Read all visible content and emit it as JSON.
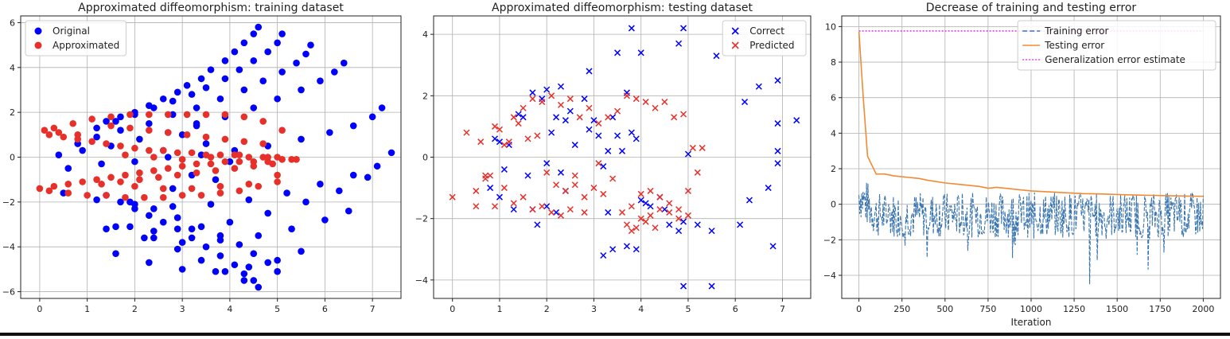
{
  "chart_data": [
    {
      "type": "scatter",
      "title": "Approximated diffeomorphism: training dataset",
      "xlabel": "",
      "ylabel": "",
      "xlim": [
        -0.4,
        7.6
      ],
      "ylim": [
        -6.3,
        6.3
      ],
      "xticks": [
        0,
        1,
        2,
        3,
        4,
        5,
        6,
        7
      ],
      "yticks": [
        -6,
        -4,
        -2,
        0,
        2,
        4,
        6
      ],
      "grid": true,
      "legend": "top-left",
      "series": [
        {
          "name": "Original",
          "color": "#0000ff",
          "marker": "dot",
          "x": [
            4.6,
            4.5,
            4.3,
            4.1,
            3.9,
            3.6,
            3.4,
            3.1,
            2.9,
            2.6,
            2.3,
            2.0,
            1.7,
            1.4,
            5.1,
            5.0,
            4.8,
            4.5,
            4.2,
            3.9,
            3.5,
            3.2,
            2.8,
            2.4,
            2.0,
            1.6,
            1.2,
            5.7,
            5.6,
            5.4,
            5.1,
            4.7,
            4.3,
            3.8,
            3.3,
            2.8,
            2.3,
            1.7,
            1.2,
            0.8,
            6.4,
            6.2,
            5.9,
            5.5,
            5.0,
            4.5,
            3.9,
            3.3,
            2.7,
            2.1,
            1.5,
            0.9,
            0.4,
            7.2,
            7.0,
            6.6,
            6.1,
            5.5,
            4.8,
            4.1,
            3.4,
            2.7,
            2.0,
            1.3,
            0.6,
            7.4,
            7.1,
            6.6,
            5.9,
            5.2,
            4.4,
            3.6,
            2.8,
            2.0,
            1.2,
            0.5,
            6.5,
            6.0,
            5.3,
            4.6,
            3.8,
            3.0,
            2.2,
            1.4,
            6.9,
            6.3,
            5.6,
            4.8,
            4.0,
            3.2,
            2.4,
            1.6,
            5.5,
            5.0,
            4.4,
            3.7,
            3.0,
            2.3,
            1.6,
            4.6,
            4.3,
            3.9,
            3.4,
            2.9,
            2.4,
            1.9,
            4.5,
            4.3,
            4.1,
            3.8,
            3.5,
            3.2,
            2.9,
            2.6,
            2.3,
            2.0,
            1.7,
            5.0,
            4.8,
            4.5,
            4.2,
            3.8,
            3.4,
            2.9,
            2.4,
            1.9,
            1.4,
            3.0,
            3.5,
            4.0,
            3.2,
            3.7,
            2.6,
            2.8,
            3.3
          ],
          "y": [
            5.8,
            5.5,
            5.1,
            4.7,
            4.3,
            3.9,
            3.5,
            3.2,
            2.9,
            2.6,
            2.3,
            2.0,
            1.8,
            1.6,
            5.5,
            5.1,
            4.7,
            4.3,
            3.9,
            3.5,
            3.1,
            2.8,
            2.5,
            2.2,
            1.9,
            1.6,
            1.3,
            5.0,
            4.6,
            4.2,
            3.8,
            3.4,
            3.0,
            2.6,
            2.2,
            1.9,
            1.5,
            1.2,
            0.9,
            0.6,
            4.2,
            3.8,
            3.4,
            3.0,
            2.6,
            2.2,
            1.8,
            1.4,
            1.1,
            0.8,
            0.5,
            0.3,
            0.1,
            2.2,
            1.8,
            1.4,
            1.1,
            0.8,
            0.5,
            0.3,
            0.1,
            0.0,
            -0.2,
            -0.3,
            -0.5,
            0.2,
            -0.4,
            -0.8,
            -1.2,
            -1.6,
            -1.9,
            -2.1,
            -2.2,
            -2.1,
            -1.9,
            -1.6,
            -2.4,
            -2.8,
            -3.2,
            -3.5,
            -3.7,
            -3.8,
            -3.6,
            -3.2,
            -0.9,
            -1.5,
            -2.0,
            -2.5,
            -2.9,
            -3.2,
            -3.3,
            -3.1,
            -4.2,
            -4.6,
            -4.9,
            -5.1,
            -5.0,
            -4.7,
            -4.3,
            -5.8,
            -5.5,
            -5.1,
            -4.6,
            -4.1,
            -3.6,
            -3.1,
            -5.5,
            -5.2,
            -4.8,
            -4.4,
            -4.0,
            -3.6,
            -3.2,
            -2.9,
            -2.6,
            -2.3,
            -2.0,
            -5.1,
            -4.7,
            -4.3,
            -3.9,
            -3.5,
            -3.1,
            -2.7,
            -2.3,
            -2.0,
            -1.7,
            1.0,
            0.6,
            -0.2,
            -0.8,
            -1.0,
            0.3,
            -1.4,
            1.5
          ]
        },
        {
          "name": "Approximated",
          "color": "#e8302a",
          "marker": "dot",
          "x": [
            0.0,
            0.3,
            0.6,
            0.9,
            1.2,
            1.5,
            1.8,
            2.1,
            2.4,
            2.7,
            3.0,
            3.3,
            3.6,
            3.9,
            4.2,
            4.5,
            4.8,
            5.1,
            5.3,
            5.4,
            0.2,
            0.5,
            0.8,
            1.1,
            1.4,
            1.7,
            2.0,
            2.3,
            2.6,
            2.9,
            3.2,
            3.5,
            3.8,
            4.1,
            4.4,
            4.7,
            5.0,
            0.3,
            0.7,
            1.1,
            1.5,
            1.9,
            2.3,
            2.7,
            3.1,
            3.5,
            3.9,
            4.3,
            4.7,
            5.1,
            0.2,
            0.6,
            1.0,
            1.4,
            1.8,
            2.2,
            2.6,
            3.0,
            3.4,
            3.8,
            4.2,
            4.6,
            5.0,
            1.5,
            1.9,
            2.3,
            2.7,
            3.1,
            3.5,
            3.9,
            4.3,
            4.7,
            1.3,
            1.7,
            2.1,
            2.5,
            2.9,
            3.3,
            3.7,
            4.1,
            4.5,
            4.9,
            1.8,
            2.4,
            3.0,
            3.6,
            4.2,
            4.8,
            2.0,
            2.6,
            3.2,
            3.8,
            4.4,
            5.0,
            0.1,
            0.4,
            0.8
          ],
          "y": [
            -1.4,
            -1.3,
            -1.2,
            -1.1,
            -1.0,
            -0.9,
            -0.8,
            -0.7,
            -0.6,
            -0.5,
            -0.4,
            -0.3,
            -0.3,
            -0.2,
            -0.2,
            -0.2,
            -0.2,
            -0.1,
            -0.1,
            -0.1,
            1.0,
            0.9,
            0.8,
            0.7,
            0.6,
            0.5,
            0.4,
            0.3,
            0.3,
            0.2,
            0.2,
            0.1,
            0.1,
            0.1,
            0.0,
            0.0,
            0.0,
            1.3,
            1.5,
            1.7,
            1.8,
            1.9,
            1.9,
            1.9,
            1.9,
            1.9,
            1.9,
            1.8,
            1.6,
            1.2,
            -1.5,
            -1.6,
            -1.7,
            -1.7,
            -1.8,
            -1.8,
            -1.8,
            -1.7,
            -1.7,
            -1.6,
            -1.5,
            -1.3,
            -1.1,
            1.4,
            1.3,
            1.2,
            1.1,
            1.0,
            0.9,
            0.8,
            0.7,
            0.6,
            -1.2,
            -1.1,
            -1.0,
            -0.9,
            -0.8,
            -0.7,
            -0.6,
            -0.5,
            -0.4,
            -0.3,
            0.1,
            0.0,
            -0.1,
            0.0,
            0.1,
            0.0,
            -1.3,
            -1.4,
            -1.4,
            -1.3,
            -1.2,
            -0.8,
            1.2,
            1.1,
            1.0
          ]
        }
      ]
    },
    {
      "type": "scatter",
      "title": "Approximated diffeomorphism: testing dataset",
      "xlabel": "",
      "ylabel": "",
      "xlim": [
        -0.4,
        7.6
      ],
      "ylim": [
        -4.6,
        4.6
      ],
      "xticks": [
        0,
        1,
        2,
        3,
        4,
        5,
        6,
        7
      ],
      "yticks": [
        -4,
        -2,
        0,
        2,
        4
      ],
      "grid": true,
      "legend": "top-right",
      "series": [
        {
          "name": "Correct",
          "color": "#0000ff",
          "marker": "x",
          "x": [
            3.8,
            4.9,
            4.0,
            3.5,
            2.9,
            4.8,
            5.6,
            6.9,
            7.3,
            6.2,
            6.5,
            6.9,
            6.9,
            6.7,
            6.9,
            1.0,
            1.2,
            1.4,
            1.5,
            1.7,
            1.9,
            2.0,
            2.1,
            2.2,
            2.3,
            2.4,
            2.5,
            2.6,
            2.8,
            2.9,
            3.0,
            3.1,
            3.2,
            3.3,
            3.4,
            3.5,
            3.6,
            3.7,
            3.8,
            3.9,
            4.0,
            4.1,
            4.2,
            4.4,
            4.5,
            4.6,
            4.8,
            4.9,
            5.0,
            5.2,
            5.5,
            6.1,
            6.3,
            6.8,
            3.3,
            3.7,
            3.9,
            3.2,
            3.4,
            4.9,
            5.5,
            1.7,
            1.8,
            2.0,
            2.2,
            2.4,
            0.9,
            1.1,
            1.3,
            0.8,
            1.0,
            1.6,
            2.0,
            2.3
          ],
          "y": [
            4.2,
            4.2,
            3.4,
            3.4,
            2.8,
            3.7,
            3.3,
            2.5,
            1.2,
            1.8,
            2.3,
            1.1,
            0.2,
            -1.0,
            -0.2,
            0.5,
            0.4,
            1.4,
            1.3,
            2.1,
            1.9,
            2.2,
            0.8,
            1.3,
            2.3,
            1.2,
            1.5,
            0.4,
            1.9,
            0.9,
            1.2,
            0.7,
            -0.3,
            0.2,
            1.3,
            0.7,
            0.2,
            2.1,
            0.8,
            0.6,
            -1.4,
            -1.5,
            -1.6,
            -1.3,
            -1.7,
            -2.2,
            -2.4,
            -2.1,
            0.1,
            -2.2,
            -2.4,
            -2.2,
            -1.4,
            -2.9,
            -1.8,
            -2.9,
            -3.0,
            -3.2,
            -3.0,
            -4.2,
            -4.2,
            -1.7,
            -2.2,
            -1.6,
            -1.8,
            -1.1,
            0.6,
            -0.4,
            -1.7,
            -1.0,
            -1.3,
            -0.6,
            -0.2,
            -0.5
          ],
          "note": ""
        },
        {
          "name": "Predicted",
          "color": "#e8302a",
          "marker": "x",
          "x": [
            0.0,
            0.3,
            0.5,
            0.7,
            0.9,
            1.1,
            1.3,
            1.5,
            1.7,
            1.9,
            2.1,
            2.3,
            2.5,
            2.7,
            2.9,
            3.1,
            3.3,
            3.5,
            3.7,
            3.9,
            4.1,
            4.3,
            4.5,
            4.7,
            4.9,
            5.1,
            5.3,
            0.6,
            0.8,
            1.0,
            1.2,
            1.4,
            1.6,
            1.8,
            2.0,
            2.2,
            2.4,
            2.6,
            2.8,
            3.0,
            3.2,
            3.4,
            3.6,
            3.8,
            4.0,
            4.2,
            4.4,
            4.6,
            4.8,
            5.0,
            5.2,
            0.5,
            0.7,
            0.9,
            1.1,
            1.3,
            1.5,
            1.7,
            1.9,
            2.1,
            2.3,
            2.5,
            3.8,
            4.0,
            4.2,
            4.4,
            4.6,
            4.8,
            5.0,
            3.7,
            3.9,
            4.1,
            4.3,
            2.6,
            2.8,
            3.1
          ],
          "y": [
            -1.3,
            0.8,
            -1.6,
            -0.6,
            1.0,
            0.4,
            1.3,
            1.6,
            1.9,
            1.8,
            2.0,
            1.7,
            1.9,
            1.3,
            1.6,
            1.1,
            1.3,
            1.5,
            2.0,
            1.9,
            1.8,
            1.6,
            1.8,
            1.3,
            1.4,
            0.3,
            0.3,
            0.5,
            -0.6,
            0.9,
            0.5,
            1.1,
            0.6,
            0.7,
            -0.5,
            -0.9,
            -1.1,
            -0.6,
            -1.3,
            -1.0,
            -1.2,
            -0.7,
            -1.8,
            -1.6,
            -1.2,
            -1.1,
            -1.3,
            -1.5,
            -1.7,
            -1.1,
            -0.5,
            -1.1,
            -0.7,
            -1.6,
            -1.0,
            -1.5,
            -1.3,
            -1.7,
            -1.6,
            -1.8,
            -1.9,
            -1.7,
            -2.4,
            -2.0,
            -1.9,
            -1.7,
            -1.8,
            -2.0,
            -1.9,
            -2.2,
            -2.3,
            -2.1,
            -2.3,
            -0.9,
            -1.8,
            -0.2
          ]
        }
      ]
    },
    {
      "type": "line",
      "title": "Decrease of training and testing error",
      "xlabel": "Iteration",
      "ylabel": "",
      "xlim": [
        -100,
        2100
      ],
      "ylim": [
        -5.3,
        10.6
      ],
      "xticks": [
        0,
        250,
        500,
        750,
        1000,
        1250,
        1500,
        1750,
        2000
      ],
      "yticks": [
        -4,
        -2,
        0,
        2,
        4,
        6,
        8,
        10
      ],
      "grid": true,
      "legend": "top-right",
      "series": [
        {
          "name": "Training error",
          "color": "#3a75b0",
          "style": "dashed",
          "x_start": 0,
          "x_end": 2000,
          "envelope": {
            "start_upper": 1.4,
            "start_lower": -0.3,
            "mean": -0.6,
            "spread": 1.6,
            "min": -4.5,
            "min_at": 1340
          }
        },
        {
          "name": "Testing error",
          "color": "#f28a33",
          "style": "solid",
          "x": [
            0,
            25,
            50,
            100,
            150,
            200,
            250,
            300,
            350,
            400,
            500,
            600,
            700,
            750,
            800,
            900,
            1000,
            1100,
            1200,
            1300,
            1400,
            1500,
            1600,
            1700,
            1800,
            1900,
            2000
          ],
          "y": [
            9.7,
            6.0,
            2.7,
            1.7,
            1.7,
            1.6,
            1.55,
            1.5,
            1.45,
            1.35,
            1.2,
            1.1,
            1.0,
            0.9,
            0.95,
            0.85,
            0.75,
            0.7,
            0.65,
            0.6,
            0.58,
            0.55,
            0.52,
            0.5,
            0.48,
            0.46,
            0.45
          ]
        },
        {
          "name": "Generalization error estimate",
          "color": "#e040e0",
          "style": "dotted",
          "x": [
            0,
            2000
          ],
          "y": [
            9.75,
            9.75
          ]
        }
      ]
    }
  ]
}
